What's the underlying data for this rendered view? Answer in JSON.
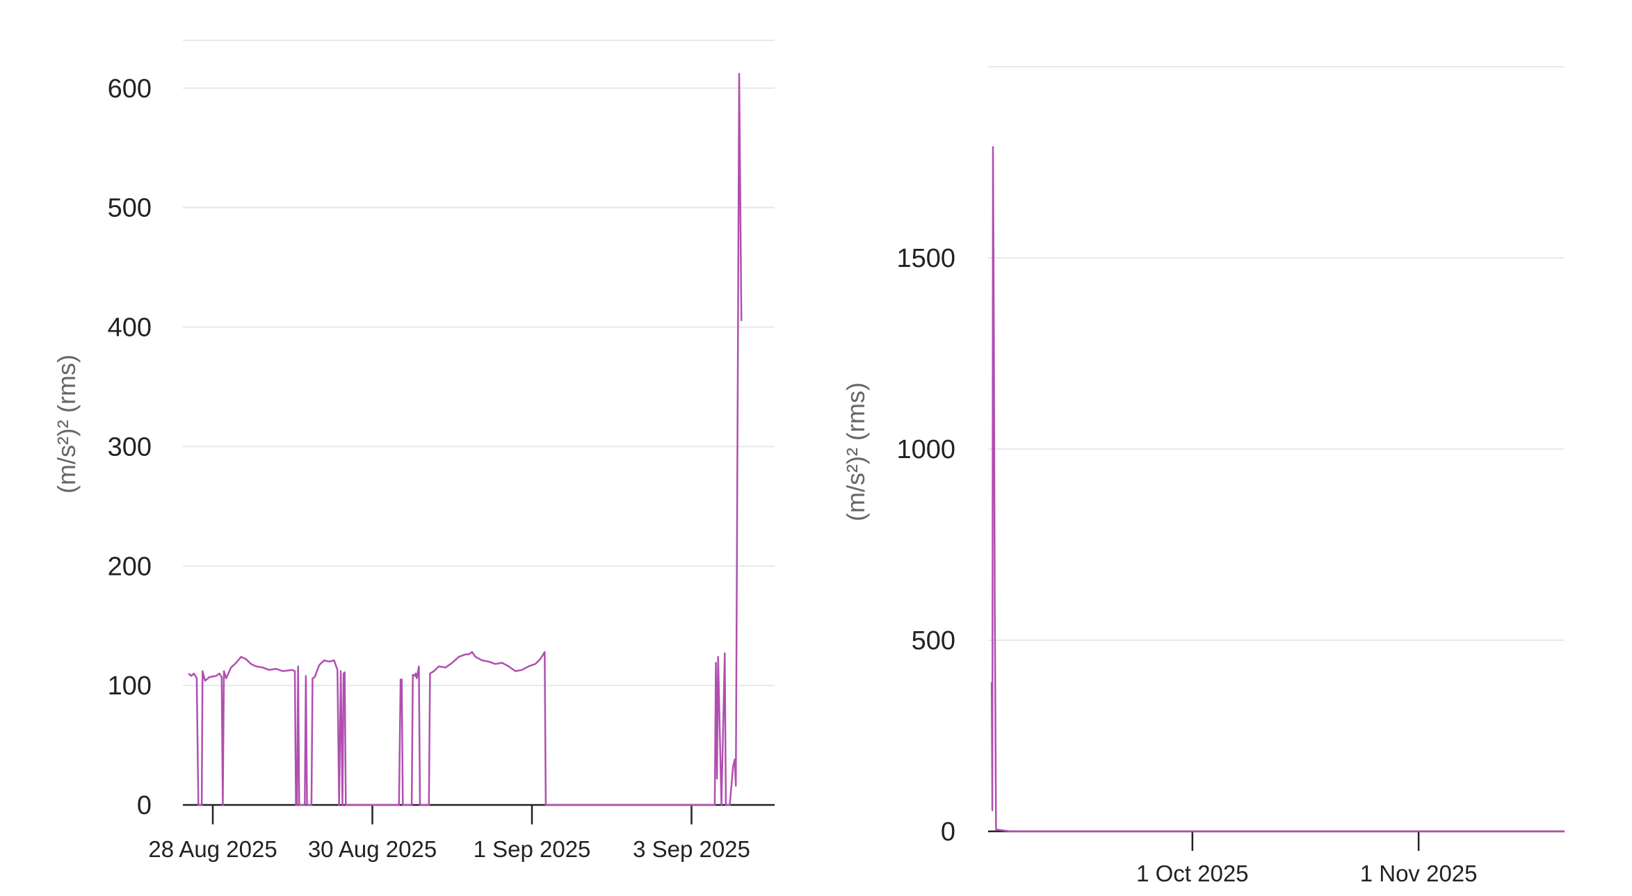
{
  "chart_data": [
    {
      "type": "line",
      "ylabel": "(m/s²)² (rms)",
      "ylim": [
        0,
        640
      ],
      "xlim": [
        "2025-08-27T15:00",
        "2025-09-04T01:00"
      ],
      "y_ticks": [
        0,
        100,
        200,
        300,
        400,
        500,
        600
      ],
      "x_ticks": [
        {
          "date": "2025-08-28",
          "label": "28 Aug 2025"
        },
        {
          "date": "2025-08-30",
          "label": "30 Aug 2025"
        },
        {
          "date": "2025-09-01",
          "label": "1 Sep 2025"
        },
        {
          "date": "2025-09-03",
          "label": "3 Sep 2025"
        }
      ],
      "grid": true,
      "color": "#b04fb0",
      "series": [
        {
          "points": [
            [
              "2025-08-27T16:40",
              110
            ],
            [
              "2025-08-27T17:30",
              108
            ],
            [
              "2025-08-27T18:20",
              110
            ],
            [
              "2025-08-27T19:10",
              106
            ],
            [
              "2025-08-27T19:40",
              0
            ],
            [
              "2025-08-27T20:40",
              0
            ],
            [
              "2025-08-27T20:55",
              112
            ],
            [
              "2025-08-27T21:40",
              104
            ],
            [
              "2025-08-27T23:00",
              107
            ],
            [
              "2025-08-28T01:00",
              108
            ],
            [
              "2025-08-28T02:00",
              110
            ],
            [
              "2025-08-28T02:40",
              107
            ],
            [
              "2025-08-28T03:00",
              0
            ],
            [
              "2025-08-28T03:20",
              112
            ],
            [
              "2025-08-28T04:00",
              106
            ],
            [
              "2025-08-28T05:30",
              115
            ],
            [
              "2025-08-28T07:00",
              119
            ],
            [
              "2025-08-28T08:30",
              124
            ],
            [
              "2025-08-28T10:00",
              122
            ],
            [
              "2025-08-28T11:30",
              118
            ],
            [
              "2025-08-28T13:00",
              116
            ],
            [
              "2025-08-28T15:00",
              115
            ],
            [
              "2025-08-28T17:00",
              113
            ],
            [
              "2025-08-28T19:00",
              114
            ],
            [
              "2025-08-28T21:00",
              112
            ],
            [
              "2025-08-29T00:00",
              113
            ],
            [
              "2025-08-29T00:40",
              112
            ],
            [
              "2025-08-29T01:00",
              0
            ],
            [
              "2025-08-29T01:20",
              0
            ],
            [
              "2025-08-29T01:40",
              116
            ],
            [
              "2025-08-29T02:00",
              0
            ],
            [
              "2025-08-29T03:40",
              0
            ],
            [
              "2025-08-29T04:00",
              108
            ],
            [
              "2025-08-29T04:20",
              0
            ],
            [
              "2025-08-29T05:40",
              0
            ],
            [
              "2025-08-29T06:00",
              106
            ],
            [
              "2025-08-29T06:40",
              107
            ],
            [
              "2025-08-29T08:00",
              117
            ],
            [
              "2025-08-29T09:30",
              121
            ],
            [
              "2025-08-29T11:00",
              120
            ],
            [
              "2025-08-29T12:30",
              121
            ],
            [
              "2025-08-29T13:30",
              113
            ],
            [
              "2025-08-29T14:00",
              0
            ],
            [
              "2025-08-29T14:30",
              112
            ],
            [
              "2025-08-29T15:00",
              0
            ],
            [
              "2025-08-29T15:20",
              110
            ],
            [
              "2025-08-29T15:40",
              111
            ],
            [
              "2025-08-29T16:00",
              0
            ],
            [
              "2025-08-30T00:00",
              0
            ],
            [
              "2025-08-30T08:00",
              0
            ],
            [
              "2025-08-30T08:30",
              105
            ],
            [
              "2025-08-30T08:50",
              105
            ],
            [
              "2025-08-30T09:10",
              0
            ],
            [
              "2025-08-30T11:50",
              0
            ],
            [
              "2025-08-30T12:10",
              109
            ],
            [
              "2025-08-30T12:40",
              108
            ],
            [
              "2025-08-30T13:00",
              110
            ],
            [
              "2025-08-30T13:20",
              106
            ],
            [
              "2025-08-30T14:00",
              116
            ],
            [
              "2025-08-30T14:20",
              0
            ],
            [
              "2025-08-30T17:00",
              0
            ],
            [
              "2025-08-30T17:20",
              110
            ],
            [
              "2025-08-30T18:30",
              112
            ],
            [
              "2025-08-30T20:00",
              116
            ],
            [
              "2025-08-30T22:00",
              115
            ],
            [
              "2025-08-31T00:00",
              119
            ],
            [
              "2025-08-31T02:00",
              124
            ],
            [
              "2025-08-31T04:00",
              126
            ],
            [
              "2025-08-31T05:00",
              126
            ],
            [
              "2025-08-31T06:00",
              128
            ],
            [
              "2025-08-31T07:00",
              124
            ],
            [
              "2025-08-31T09:00",
              121
            ],
            [
              "2025-08-31T11:00",
              120
            ],
            [
              "2025-08-31T13:00",
              118
            ],
            [
              "2025-08-31T15:00",
              119
            ],
            [
              "2025-08-31T17:00",
              116
            ],
            [
              "2025-08-31T19:00",
              112
            ],
            [
              "2025-08-31T21:00",
              113
            ],
            [
              "2025-08-31T23:00",
              116
            ],
            [
              "2025-09-01T01:00",
              118
            ],
            [
              "2025-09-01T02:30",
              122
            ],
            [
              "2025-09-01T03:50",
              128
            ],
            [
              "2025-09-01T04:10",
              0
            ],
            [
              "2025-09-02T00:00",
              0
            ],
            [
              "2025-09-02T12:00",
              0
            ],
            [
              "2025-09-03T00:00",
              0
            ],
            [
              "2025-09-03T07:00",
              0
            ],
            [
              "2025-09-03T07:20",
              119
            ],
            [
              "2025-09-03T07:40",
              22
            ],
            [
              "2025-09-03T08:00",
              124
            ],
            [
              "2025-09-03T09:00",
              0
            ],
            [
              "2025-09-03T10:00",
              127
            ],
            [
              "2025-09-03T10:20",
              0
            ],
            [
              "2025-09-03T11:30",
              0
            ],
            [
              "2025-09-03T12:30",
              32
            ],
            [
              "2025-09-03T13:00",
              38
            ],
            [
              "2025-09-03T13:20",
              16
            ],
            [
              "2025-09-03T14:00",
              405
            ],
            [
              "2025-09-03T14:20",
              612
            ],
            [
              "2025-09-03T15:00",
              405
            ]
          ]
        }
      ]
    },
    {
      "type": "line",
      "ylabel": "(m/s²)² (rms)",
      "ylim": [
        0,
        2000
      ],
      "xlim": [
        "2025-09-03T00:00",
        "2025-11-21T00:00"
      ],
      "y_ticks": [
        0,
        500,
        1000,
        1500
      ],
      "x_ticks": [
        {
          "date": "2025-10-01",
          "label": "1 Oct 2025"
        },
        {
          "date": "2025-11-01",
          "label": "1 Nov 2025"
        }
      ],
      "grid": true,
      "color": "#b04fb0",
      "series": [
        {
          "points": [
            [
              "2025-09-03T12:00",
              390
            ],
            [
              "2025-09-03T14:00",
              55
            ],
            [
              "2025-09-03T16:00",
              1790
            ],
            [
              "2025-09-03T19:00",
              1300
            ],
            [
              "2025-09-03T22:00",
              600
            ],
            [
              "2025-09-04T02:00",
              5
            ],
            [
              "2025-09-06T00:00",
              0
            ],
            [
              "2025-09-15T00:00",
              0
            ],
            [
              "2025-10-01T00:00",
              0
            ],
            [
              "2025-10-15T00:00",
              0
            ],
            [
              "2025-11-01T00:00",
              0
            ],
            [
              "2025-11-21T00:00",
              0
            ]
          ]
        }
      ]
    }
  ]
}
